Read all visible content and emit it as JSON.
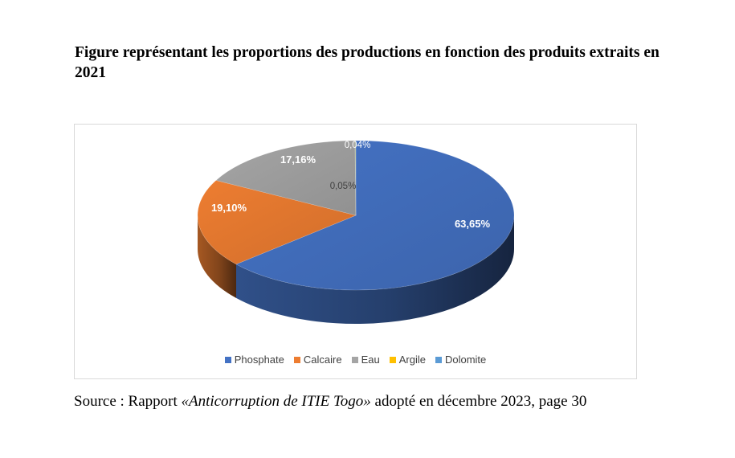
{
  "title": "Figure représentant les proportions des productions en fonction des produits extraits en 2021",
  "source": {
    "label": "Source :",
    "prefix": " Rapport ",
    "title": "«Anticorruption de ITIE Togo»",
    "suffix": " adopté en décembre 2023, page 30"
  },
  "chart_data": {
    "type": "pie",
    "title": "",
    "slices": [
      {
        "name": "Phosphate",
        "value": 63.65,
        "label": "63,65%",
        "color": "#4472C4"
      },
      {
        "name": "Calcaire",
        "value": 19.1,
        "label": "19,10%",
        "color": "#ED7D31"
      },
      {
        "name": "Eau",
        "value": 17.16,
        "label": "17,16%",
        "color": "#A5A5A5"
      },
      {
        "name": "Argile",
        "value": 0.04,
        "label": "0,04%",
        "color": "#FFC000"
      },
      {
        "name": "Dolomite",
        "value": 0.05,
        "label": "0,05%",
        "color": "#5B9BD5"
      }
    ],
    "legend_position": "bottom"
  }
}
